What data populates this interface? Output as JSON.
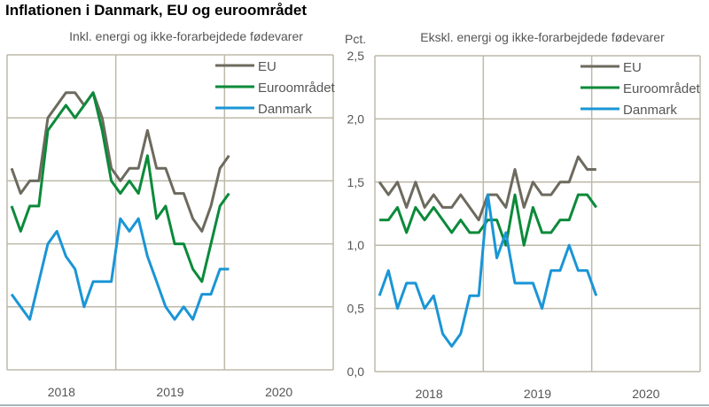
{
  "title": "Inflationen i Danmark, EU og euroområdet",
  "colors": {
    "EU": "#6d6a5e",
    "Euroområdet": "#0b8a3a",
    "Danmark": "#1a95d6",
    "grid": "#bdbaaa"
  },
  "chart_data": [
    {
      "type": "line",
      "title": "Inkl. energi og ikke-forarbejdede fødevarer",
      "ylim": [
        0,
        2.5
      ],
      "yticks": [],
      "x_start": "2018-01",
      "x_end": "2020-01",
      "frequency": "monthly",
      "xticks": [
        "2018",
        "2019",
        "2020"
      ],
      "grid": true,
      "legend": "top-right",
      "series": [
        {
          "name": "EU",
          "values": [
            1.6,
            1.4,
            1.5,
            1.5,
            2.0,
            2.1,
            2.2,
            2.2,
            2.1,
            2.2,
            2.0,
            1.6,
            1.5,
            1.6,
            1.6,
            1.9,
            1.6,
            1.6,
            1.4,
            1.4,
            1.2,
            1.1,
            1.3,
            1.6,
            1.7
          ]
        },
        {
          "name": "Euroområdet",
          "values": [
            1.3,
            1.1,
            1.3,
            1.3,
            1.9,
            2.0,
            2.1,
            2.0,
            2.1,
            2.2,
            1.9,
            1.5,
            1.4,
            1.5,
            1.4,
            1.7,
            1.2,
            1.3,
            1.0,
            1.0,
            0.8,
            0.7,
            1.0,
            1.3,
            1.4
          ]
        },
        {
          "name": "Danmark",
          "values": [
            0.6,
            0.5,
            0.4,
            0.7,
            1.0,
            1.1,
            0.9,
            0.8,
            0.5,
            0.7,
            0.7,
            0.7,
            1.2,
            1.1,
            1.2,
            0.9,
            0.7,
            0.5,
            0.4,
            0.5,
            0.4,
            0.6,
            0.6,
            0.8,
            0.8
          ]
        }
      ]
    },
    {
      "type": "line",
      "title": "Ekskl. energi og ikke-forarbejdede fødevarer",
      "ylabel": "Pct.",
      "ylim": [
        0,
        2.5
      ],
      "yticks": [
        "0,0",
        "0,5",
        "1,0",
        "1,5",
        "2,0",
        "2,5"
      ],
      "x_start": "2018-01",
      "x_end": "2020-01",
      "frequency": "monthly",
      "xticks": [
        "2018",
        "2019",
        "2020"
      ],
      "grid": true,
      "legend": "top-right",
      "series": [
        {
          "name": "EU",
          "values": [
            1.5,
            1.4,
            1.5,
            1.3,
            1.5,
            1.3,
            1.4,
            1.3,
            1.3,
            1.4,
            1.3,
            1.2,
            1.4,
            1.4,
            1.3,
            1.6,
            1.3,
            1.5,
            1.4,
            1.4,
            1.5,
            1.5,
            1.7,
            1.6,
            1.6
          ]
        },
        {
          "name": "Euroområdet",
          "values": [
            1.2,
            1.2,
            1.3,
            1.1,
            1.3,
            1.2,
            1.3,
            1.2,
            1.1,
            1.2,
            1.1,
            1.1,
            1.2,
            1.2,
            1.0,
            1.4,
            1.0,
            1.3,
            1.1,
            1.1,
            1.2,
            1.2,
            1.4,
            1.4,
            1.3
          ]
        },
        {
          "name": "Danmark",
          "values": [
            0.6,
            0.8,
            0.5,
            0.7,
            0.7,
            0.5,
            0.6,
            0.3,
            0.2,
            0.3,
            0.6,
            0.6,
            1.4,
            0.9,
            1.1,
            0.7,
            0.7,
            0.7,
            0.5,
            0.8,
            0.8,
            1.0,
            0.8,
            0.8,
            0.6
          ]
        }
      ]
    }
  ]
}
